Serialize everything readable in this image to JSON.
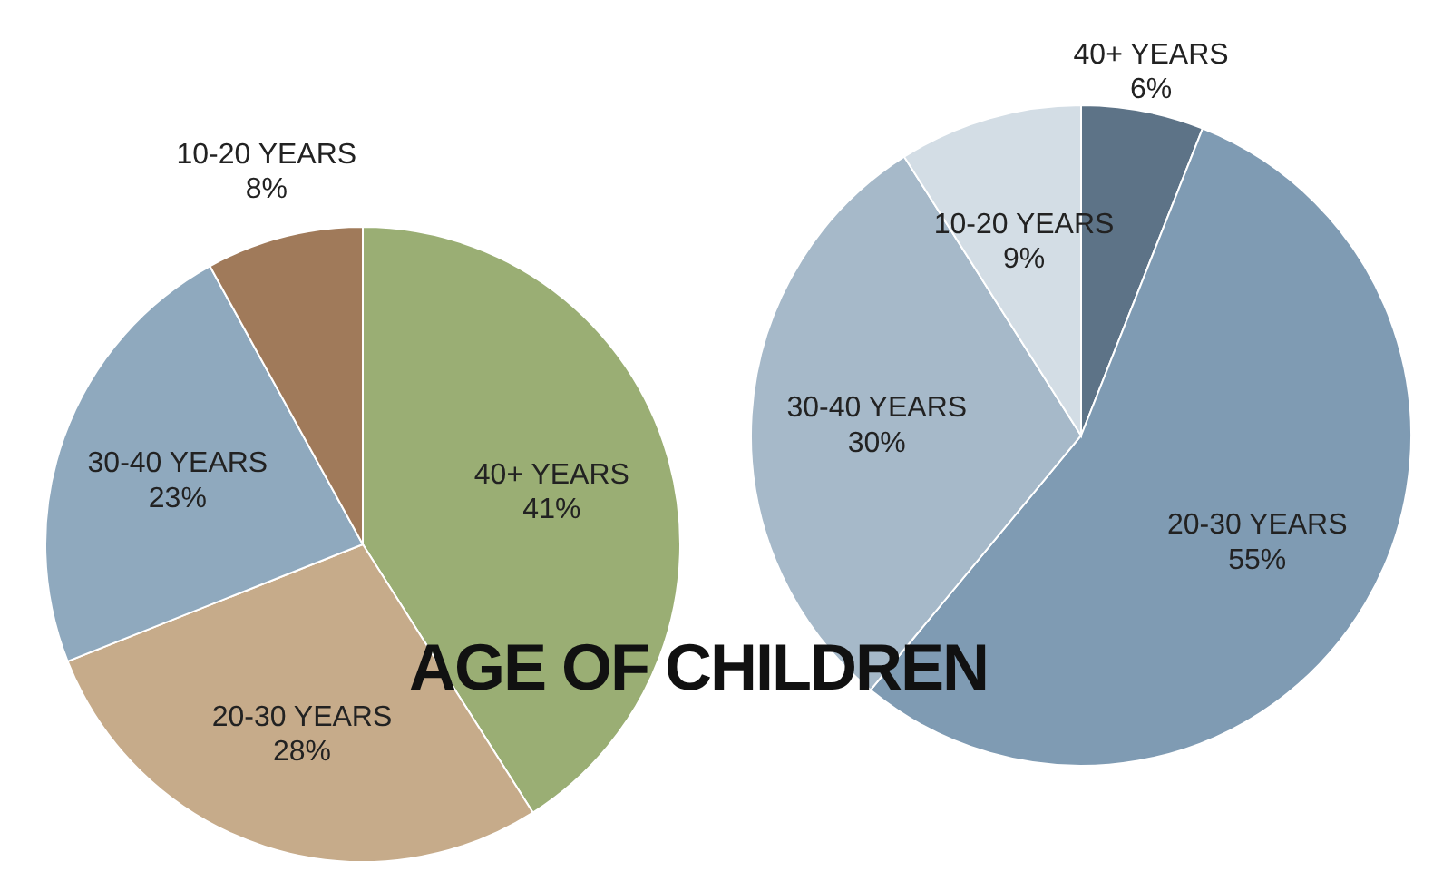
{
  "chart_data": [
    {
      "type": "pie",
      "title": "AGE OF CHILDREN",
      "categories": [
        "40+ YEARS",
        "20-30 YEARS",
        "30-40 YEARS",
        "10-20 YEARS"
      ],
      "values": [
        41,
        28,
        23,
        8
      ],
      "value_labels": [
        "41%",
        "28%",
        "23%",
        "8%"
      ],
      "colors": [
        "#9aae74",
        "#c6ab8a",
        "#8fa9be",
        "#a07a5a"
      ]
    },
    {
      "type": "pie",
      "categories": [
        "40+ YEARS",
        "20-30 YEARS",
        "30-40 YEARS",
        "10-20 YEARS"
      ],
      "values": [
        6,
        55,
        30,
        9
      ],
      "value_labels": [
        "6%",
        "55%",
        "30%",
        "9%"
      ],
      "colors": [
        "#5d7387",
        "#7f9bb3",
        "#a6b9c9",
        "#d3dde5"
      ]
    }
  ]
}
